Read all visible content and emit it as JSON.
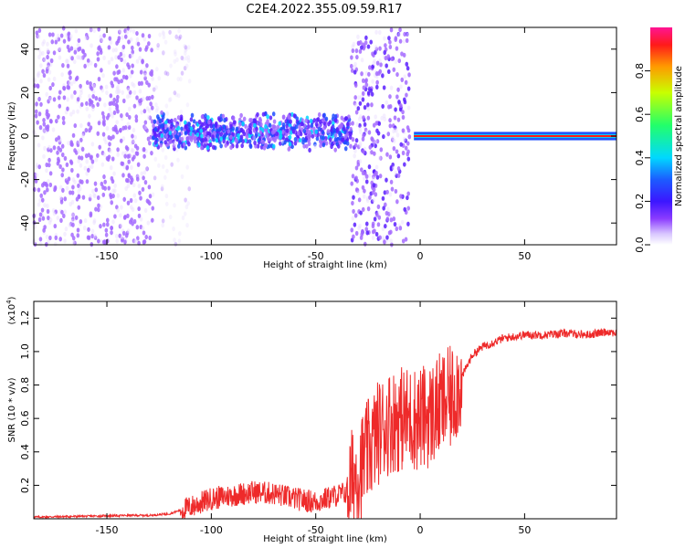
{
  "title": "C2E4.2022.355.09.59.R17",
  "colors": {
    "snr_line": "#ee2a2a",
    "spectrogram_scatter": "#7a2cf2",
    "colormap": [
      "#ffffff",
      "#d9c7ff",
      "#8b3cff",
      "#3b16ff",
      "#1c5cff",
      "#00d8ff",
      "#22ff6a",
      "#c9ff00",
      "#ff9a00",
      "#ff1a1a",
      "#ff1493"
    ]
  },
  "chart_data": [
    {
      "type": "heatmap",
      "name": "spectrogram",
      "xlabel": "Height of straight line (km)",
      "ylabel": "Frequency (Hz)",
      "xlim": [
        -185,
        94
      ],
      "ylim": [
        -50,
        50
      ],
      "xticks": [
        -150,
        -100,
        -50,
        0,
        50
      ],
      "yticks": [
        -40,
        -20,
        0,
        20,
        40
      ],
      "xtick_labels": [
        "-150",
        "-100",
        "-50",
        "0",
        "50"
      ],
      "ytick_labels": [
        "-40",
        "-20",
        "0",
        "20",
        "40"
      ],
      "bands": [
        {
          "x": [
            -185,
            -128
          ],
          "f_center": 0,
          "f_half_width": 50,
          "amplitude": 0.2,
          "kind": "noise"
        },
        {
          "x": [
            -128,
            -110
          ],
          "f_center": 0,
          "f_half_width": 50,
          "amplitude": 0.12,
          "kind": "noise-fading"
        },
        {
          "x": [
            -128,
            -33
          ],
          "f_center": 2,
          "f_half_width": 9,
          "amplitude": 0.35,
          "kind": "signal-spread"
        },
        {
          "x": [
            -33,
            -5
          ],
          "f_center": 0,
          "f_half_width": 50,
          "amplitude": 0.25,
          "kind": "noise"
        },
        {
          "x": [
            -3,
            94
          ],
          "f_center": 0,
          "f_half_width": 1.5,
          "amplitude": 0.85,
          "kind": "carrier"
        }
      ]
    },
    {
      "type": "colorbar",
      "name": "amplitude-scale",
      "label": "Normalized spectral amplitude",
      "range": [
        0,
        1
      ],
      "ticks": [
        0.0,
        0.2,
        0.4,
        0.6,
        0.8
      ],
      "tick_labels": [
        "0.0",
        "0.2",
        "0.4",
        "0.6",
        "0.8"
      ]
    },
    {
      "type": "line",
      "name": "snr",
      "xlabel": "Height of straight line (km)",
      "ylabel": "SNR (10 * v/v)",
      "y_multiplier_label": "(x10",
      "y_multiplier_exp": "4",
      "y_multiplier_close": ")",
      "xlim": [
        -185,
        94
      ],
      "ylim": [
        0,
        1.3
      ],
      "xticks": [
        -150,
        -100,
        -50,
        0,
        50
      ],
      "yticks": [
        0.2,
        0.4,
        0.6,
        0.8,
        1.0,
        1.2
      ],
      "xtick_labels": [
        "-150",
        "-100",
        "-50",
        "0",
        "50"
      ],
      "ytick_labels": [
        "0.2",
        "0.4",
        "0.6",
        "0.8",
        "1.0",
        "1.2"
      ],
      "series": [
        {
          "x": [
            -185,
            -160,
            -140,
            -130,
            -120,
            -110,
            -100,
            -90,
            -80,
            -70,
            -60,
            -50,
            -45,
            -40,
            -35,
            -32,
            -28,
            -25,
            -20,
            -15,
            -10,
            -5,
            0,
            5,
            10,
            15,
            20,
            25,
            30,
            40,
            50,
            60,
            70,
            80,
            90,
            94
          ],
          "values": [
            0.01,
            0.015,
            0.02,
            0.02,
            0.03,
            0.07,
            0.12,
            0.14,
            0.16,
            0.15,
            0.12,
            0.1,
            0.12,
            0.14,
            0.16,
            0.25,
            0.32,
            0.4,
            0.52,
            0.58,
            0.6,
            0.6,
            0.6,
            0.62,
            0.68,
            0.72,
            0.85,
            0.98,
            1.03,
            1.08,
            1.1,
            1.1,
            1.11,
            1.1,
            1.12,
            1.11
          ]
        }
      ]
    }
  ]
}
